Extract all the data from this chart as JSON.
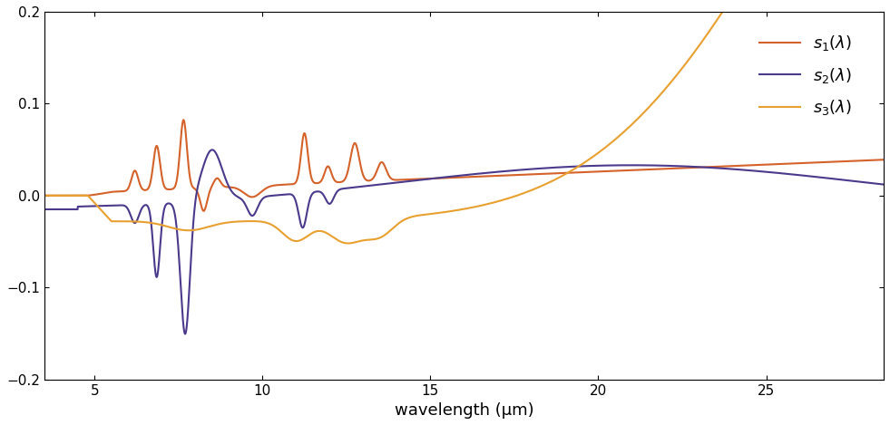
{
  "color_s1": "#D4622A",
  "color_s2": "#4B3A8C",
  "color_s3": "#E8A030",
  "xlim": [
    3.5,
    28.5
  ],
  "ylim": [
    -0.2,
    0.2
  ],
  "xlabel": "wavelength (μm)",
  "ylabel": "",
  "xticks": [
    5,
    10,
    15,
    20,
    25
  ],
  "yticks": [
    -0.2,
    -0.1,
    0.0,
    0.1,
    0.2
  ],
  "legend_labels": [
    "$s_1(\\lambda)$",
    "$s_2(\\lambda)$",
    "$s_3(\\lambda)$"
  ],
  "linewidth": 1.5,
  "background_color": "#ffffff"
}
